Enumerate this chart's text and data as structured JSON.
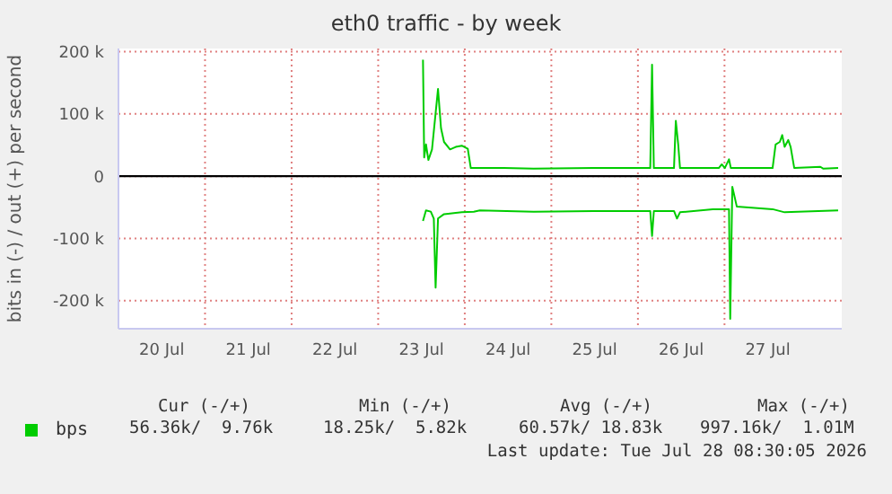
{
  "chart_data": {
    "type": "line",
    "title": "eth0 traffic - by week",
    "ylabel": "bits in (-) / out (+) per second",
    "xlim": [
      "2026-07-20T00:00",
      "2026-07-28T08:30"
    ],
    "xticks": [
      {
        "value": "2026-07-20T12:00",
        "label": "20 Jul"
      },
      {
        "value": "2026-07-21T12:00",
        "label": "21 Jul"
      },
      {
        "value": "2026-07-22T12:00",
        "label": "22 Jul"
      },
      {
        "value": "2026-07-23T12:00",
        "label": "23 Jul"
      },
      {
        "value": "2026-07-24T12:00",
        "label": "24 Jul"
      },
      {
        "value": "2026-07-25T12:00",
        "label": "25 Jul"
      },
      {
        "value": "2026-07-26T12:00",
        "label": "26 Jul"
      },
      {
        "value": "2026-07-27T12:00",
        "label": "27 Jul"
      }
    ],
    "ylim": [
      -245000,
      205000
    ],
    "yticks": [
      {
        "value": -200000,
        "label": "-200 k"
      },
      {
        "value": -100000,
        "label": "-100 k"
      },
      0,
      {
        "value": 100000,
        "label": "100 k"
      },
      {
        "value": 200000,
        "label": "200 k"
      }
    ],
    "grid": true,
    "legend": "bottom left",
    "marker": "none",
    "line_style": "solid",
    "ref_lines": [
      {
        "axis": "y",
        "value": 0,
        "color": "#000000"
      }
    ],
    "series": [
      {
        "name": "bps",
        "color": "#00cc00",
        "x": [
          "2026-07-23T12:25",
          "2026-07-23T12:45",
          "2026-07-23T13:15",
          "2026-07-23T13:55",
          "2026-07-23T14:55",
          "2026-07-23T16:35",
          "2026-07-23T17:25",
          "2026-07-23T18:15",
          "2026-07-23T19:55",
          "2026-07-23T21:30",
          "2026-07-23T23:10",
          "2026-07-24T00:50",
          "2026-07-24T01:40",
          "2026-07-24T10:50",
          "2026-07-24T19:05",
          "2026-07-25T11:40",
          "2026-07-26T03:25",
          "2026-07-26T03:55",
          "2026-07-26T04:25",
          "2026-07-26T10:00",
          "2026-07-26T10:30",
          "2026-07-26T11:10",
          "2026-07-26T11:40",
          "2026-07-26T22:25",
          "2026-07-26T23:15",
          "2026-07-27T00:05",
          "2026-07-27T01:15",
          "2026-07-27T01:45",
          "2026-07-27T13:20",
          "2026-07-27T14:10",
          "2026-07-27T15:20",
          "2026-07-27T16:00",
          "2026-07-27T16:40",
          "2026-07-27T17:40",
          "2026-07-27T18:20",
          "2026-07-27T19:20",
          "2026-07-28T02:35",
          "2026-07-28T03:25",
          "2026-07-28T07:30"
        ],
        "values": [
          187000,
          30000,
          51000,
          26000,
          43000,
          140000,
          77000,
          55000,
          43000,
          47000,
          49000,
          44000,
          13000,
          13000,
          12000,
          13000,
          13000,
          179000,
          13000,
          13000,
          89000,
          51000,
          13000,
          13000,
          19000,
          13000,
          27000,
          13000,
          13000,
          51000,
          55000,
          66000,
          47000,
          58000,
          47000,
          13000,
          15000,
          12000,
          13000
        ]
      },
      {
        "color": "#00cc00",
        "x": [
          "2026-07-23T12:25",
          "2026-07-23T13:15",
          "2026-07-23T14:35",
          "2026-07-23T15:25",
          "2026-07-23T15:55",
          "2026-07-23T16:35",
          "2026-07-23T18:15",
          "2026-07-23T19:55",
          "2026-07-23T23:10",
          "2026-07-24T02:30",
          "2026-07-24T04:10",
          "2026-07-24T19:05",
          "2026-07-25T11:40",
          "2026-07-26T03:25",
          "2026-07-26T03:55",
          "2026-07-26T04:25",
          "2026-07-26T10:00",
          "2026-07-26T10:50",
          "2026-07-26T11:40",
          "2026-07-26T20:45",
          "2026-07-27T00:05",
          "2026-07-27T01:15",
          "2026-07-27T01:35",
          "2026-07-27T02:10",
          "2026-07-27T03:25",
          "2026-07-27T13:20",
          "2026-07-27T16:40",
          "2026-07-28T07:30"
        ],
        "values": [
          -72000,
          -55000,
          -57000,
          -68000,
          -179000,
          -68000,
          -61000,
          -60000,
          -58000,
          -57000,
          -55000,
          -57000,
          -56000,
          -56000,
          -96000,
          -56000,
          -56000,
          -68000,
          -58000,
          -53000,
          -53000,
          -53000,
          -229000,
          -17000,
          -49000,
          -53000,
          -58000,
          -55000
        ]
      }
    ],
    "annotations": [
      "Cur (-/+)",
      "Min (-/+)",
      "Avg (-/+)",
      "Max (-/+)",
      "56.36k/  9.76k",
      "18.25k/  5.82k",
      "60.57k/ 18.83k",
      "997.16k/  1.01M",
      "Last update: Tue Jul 28 08:30:05 2026"
    ]
  }
}
